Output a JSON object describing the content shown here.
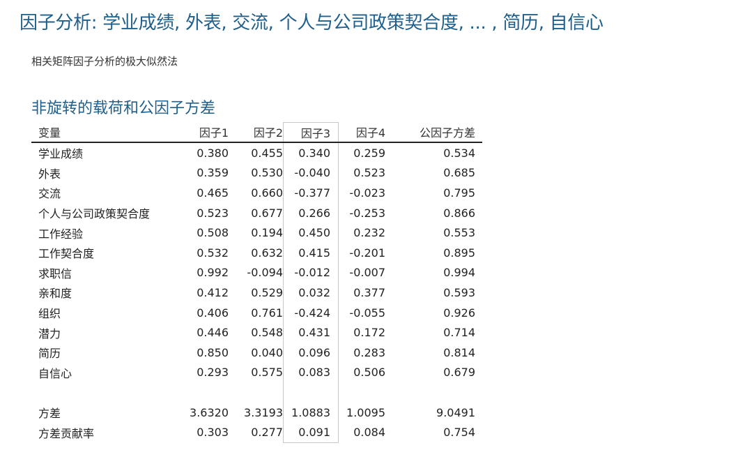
{
  "title": "因子分析: 学业成绩, 外表, 交流, 个人与公司政策契合度, ... , 简历, 自信心",
  "subtitle": "相关矩阵因子分析的极大似然法",
  "section_title": "非旋转的载荷和公因子方差",
  "accent_color": "#1f5f8b",
  "selected_column": "因子3",
  "table": {
    "headers": [
      "变量",
      "因子1",
      "因子2",
      "因子3",
      "因子4",
      "公因子方差"
    ],
    "rows": [
      [
        "学业成绩",
        "0.380",
        "0.455",
        "0.340",
        "0.259",
        "0.534"
      ],
      [
        "外表",
        "0.359",
        "0.530",
        "-0.040",
        "0.523",
        "0.685"
      ],
      [
        "交流",
        "0.465",
        "0.660",
        "-0.377",
        "-0.023",
        "0.795"
      ],
      [
        "个人与公司政策契合度",
        "0.523",
        "0.677",
        "0.266",
        "-0.253",
        "0.866"
      ],
      [
        "工作经验",
        "0.508",
        "0.194",
        "0.450",
        "0.232",
        "0.553"
      ],
      [
        "工作契合度",
        "0.532",
        "0.632",
        "0.415",
        "-0.201",
        "0.895"
      ],
      [
        "求职信",
        "0.992",
        "-0.094",
        "-0.012",
        "-0.007",
        "0.994"
      ],
      [
        "亲和度",
        "0.412",
        "0.529",
        "0.032",
        "0.377",
        "0.593"
      ],
      [
        "组织",
        "0.406",
        "0.761",
        "-0.424",
        "-0.055",
        "0.926"
      ],
      [
        "潜力",
        "0.446",
        "0.548",
        "0.431",
        "0.172",
        "0.714"
      ],
      [
        "简历",
        "0.850",
        "0.040",
        "0.096",
        "0.283",
        "0.814"
      ],
      [
        "自信心",
        "0.293",
        "0.575",
        "0.083",
        "0.506",
        "0.679"
      ]
    ],
    "summary": [
      [
        "方差",
        "3.6320",
        "3.3193",
        "1.0883",
        "1.0095",
        "9.0491"
      ],
      [
        "方差贡献率",
        "0.303",
        "0.277",
        "0.091",
        "0.084",
        "0.754"
      ]
    ]
  }
}
